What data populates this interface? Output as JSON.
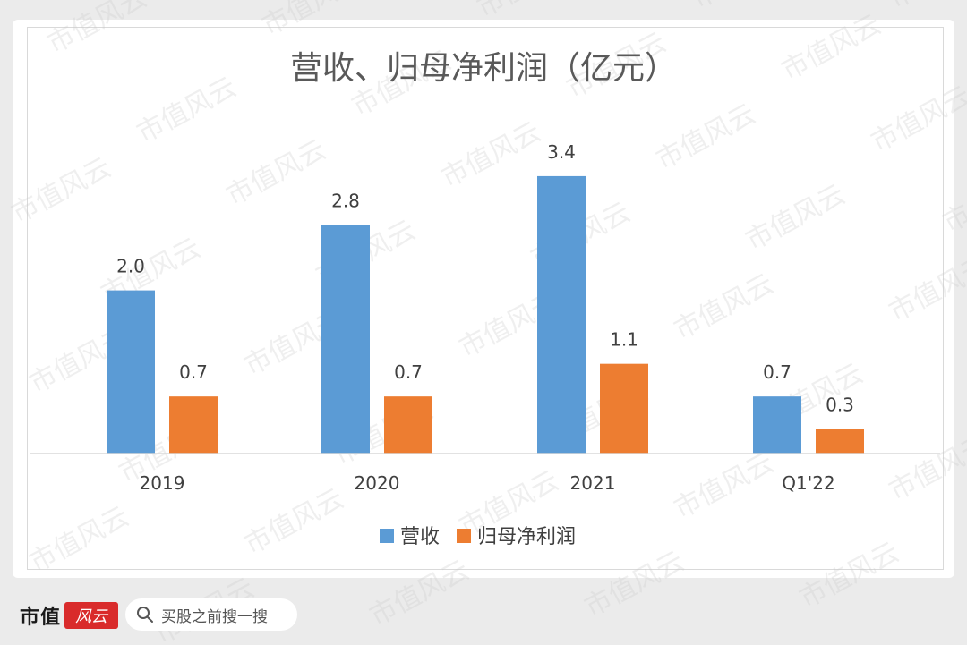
{
  "brand": {
    "name": "市值",
    "logo_text": "风云",
    "watermark_text": "市值风云"
  },
  "search": {
    "text": "买股之前搜一搜",
    "icon": "search-icon"
  },
  "colors": {
    "revenue": "#5b9bd5",
    "net_profit": "#ed7d31",
    "brand_red": "#d92b2b"
  },
  "chart_data": {
    "type": "bar",
    "title": "营收、归母净利润（亿元）",
    "categories": [
      "2019",
      "2020",
      "2021",
      "Q1'22"
    ],
    "series": [
      {
        "name": "营收",
        "values": [
          2.0,
          2.8,
          3.4,
          0.7
        ],
        "labels": [
          "2.0",
          "2.8",
          "3.4",
          "0.7"
        ]
      },
      {
        "name": "归母净利润",
        "values": [
          0.7,
          0.7,
          1.1,
          0.3
        ],
        "labels": [
          "0.7",
          "0.7",
          "1.1",
          "0.3"
        ]
      }
    ],
    "xlabel": "",
    "ylabel": "",
    "ylim": [
      0,
      3.4
    ],
    "grid": false,
    "legend": "bottom-center"
  }
}
